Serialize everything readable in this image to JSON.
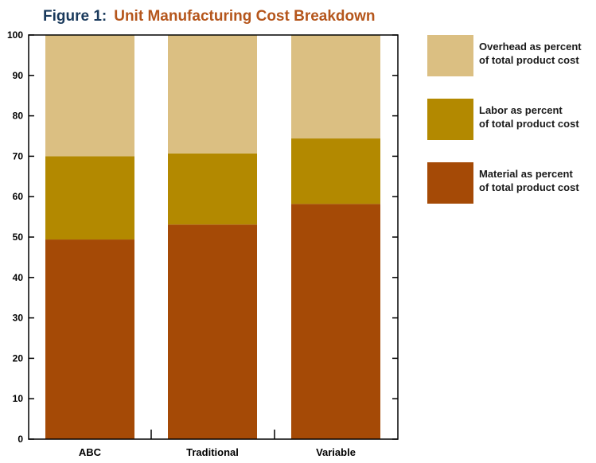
{
  "title_prefix": "Figure 1:",
  "title_main": "Unit Manufacturing Cost Breakdown",
  "chart_data": {
    "type": "bar",
    "stacked": true,
    "categories": [
      "ABC",
      "Traditional",
      "Variable"
    ],
    "series": [
      {
        "name": "Material as percent of total product cost",
        "legend_lines": [
          "Material as percent",
          "of total product cost"
        ],
        "color": "#a54a06",
        "values": [
          49.4,
          53.1,
          58.2
        ]
      },
      {
        "name": "Labor as percent of total product cost",
        "legend_lines": [
          "Labor as percent",
          "of total product cost"
        ],
        "color": "#b38900",
        "values": [
          20.6,
          17.6,
          16.2
        ]
      },
      {
        "name": "Overhead as percent of total product cost",
        "legend_lines": [
          "Overhead as percent",
          "of total product cost"
        ],
        "color": "#dbbf82",
        "values": [
          30.0,
          29.3,
          25.6
        ]
      }
    ],
    "ylim": [
      0,
      100
    ],
    "yticks": [
      0,
      10,
      20,
      30,
      40,
      50,
      60,
      70,
      80,
      90,
      100
    ],
    "grid": false,
    "legend_position": "right"
  }
}
